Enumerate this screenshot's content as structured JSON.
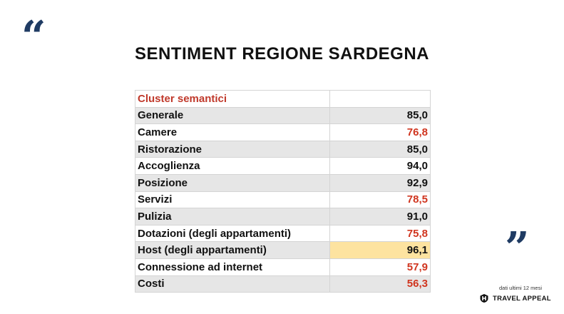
{
  "decor": {
    "open_quote": "“",
    "close_quote": "”"
  },
  "title": "SENTIMENT REGIONE SARDEGNA",
  "table": {
    "header": {
      "label": "Cluster semantici",
      "value": ""
    },
    "rows": [
      {
        "label": "Generale",
        "value": "85,0",
        "color": "black"
      },
      {
        "label": "Camere",
        "value": "76,8",
        "color": "red"
      },
      {
        "label": "Ristorazione",
        "value": "85,0",
        "color": "black"
      },
      {
        "label": "Accoglienza",
        "value": "94,0",
        "color": "black"
      },
      {
        "label": "Posizione",
        "value": "92,9",
        "color": "black"
      },
      {
        "label": "Servizi",
        "value": "78,5",
        "color": "red"
      },
      {
        "label": "Pulizia",
        "value": "91,0",
        "color": "black"
      },
      {
        "label": "Dotazioni (degli appartamenti)",
        "value": "75,8",
        "color": "red"
      },
      {
        "label": "Host (degli appartamenti)",
        "value": "96,1",
        "color": "black",
        "highlight": true
      },
      {
        "label": "Connessione ad internet",
        "value": "57,9",
        "color": "red"
      },
      {
        "label": "Costi",
        "value": "56,3",
        "color": "red"
      }
    ]
  },
  "footer": {
    "note": "dati ultimi 12 mesi",
    "brand": "TRAVEL APPEAL"
  },
  "colors": {
    "accent_red": "#d0351f",
    "quote_blue": "#1f3b63",
    "highlight": "#fde3a0"
  }
}
